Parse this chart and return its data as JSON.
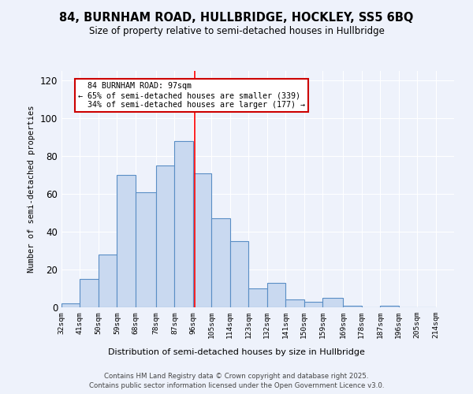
{
  "title_line1": "84, BURNHAM ROAD, HULLBRIDGE, HOCKLEY, SS5 6BQ",
  "title_line2": "Size of property relative to semi-detached houses in Hullbridge",
  "xlabel": "Distribution of semi-detached houses by size in Hullbridge",
  "ylabel": "Number of semi-detached properties",
  "bin_labels": [
    "32sqm",
    "41sqm",
    "50sqm",
    "59sqm",
    "68sqm",
    "78sqm",
    "87sqm",
    "96sqm",
    "105sqm",
    "114sqm",
    "123sqm",
    "132sqm",
    "141sqm",
    "150sqm",
    "159sqm",
    "169sqm",
    "178sqm",
    "187sqm",
    "196sqm",
    "205sqm",
    "214sqm"
  ],
  "bin_edges": [
    32,
    41,
    50,
    59,
    68,
    78,
    87,
    96,
    105,
    114,
    123,
    132,
    141,
    150,
    159,
    169,
    178,
    187,
    196,
    205,
    214
  ],
  "bar_heights": [
    2,
    15,
    28,
    70,
    61,
    75,
    88,
    71,
    47,
    35,
    10,
    13,
    4,
    3,
    5,
    1,
    0,
    1,
    0,
    0
  ],
  "bar_color": "#c9d9f0",
  "bar_edge_color": "#5a8ec5",
  "property_size": 97,
  "property_label": "84 BURNHAM ROAD: 97sqm",
  "pct_smaller": 65,
  "count_smaller": 339,
  "pct_larger": 34,
  "count_larger": 177,
  "vline_color": "red",
  "ylim": [
    0,
    125
  ],
  "yticks": [
    0,
    20,
    40,
    60,
    80,
    100,
    120
  ],
  "background_color": "#eef2fb",
  "annotation_box_color": "#ffffff",
  "annotation_box_edge": "#cc0000",
  "grid_color": "#ffffff",
  "footer_line1": "Contains HM Land Registry data © Crown copyright and database right 2025.",
  "footer_line2": "Contains public sector information licensed under the Open Government Licence v3.0."
}
